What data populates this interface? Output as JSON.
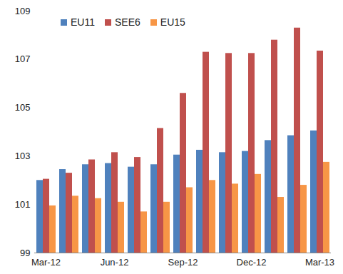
{
  "chart_data": {
    "type": "bar",
    "categories": [
      "Mar-12",
      null,
      null,
      "Jun-12",
      null,
      null,
      "Sep-12",
      null,
      null,
      "Dec-12",
      null,
      null,
      "Mar-13"
    ],
    "series": [
      {
        "name": "EU11",
        "color": "#4f81bd",
        "values": [
          102.0,
          102.45,
          102.65,
          102.7,
          102.55,
          102.65,
          103.05,
          103.25,
          103.15,
          103.2,
          103.65,
          103.85,
          104.05
        ]
      },
      {
        "name": "SEE6",
        "color": "#c0504d",
        "values": [
          102.05,
          102.3,
          102.85,
          103.15,
          102.95,
          104.15,
          105.6,
          107.3,
          107.25,
          107.25,
          107.8,
          108.3,
          107.35
        ]
      },
      {
        "name": "EU15",
        "color": "#f79646",
        "values": [
          100.95,
          101.35,
          101.25,
          101.1,
          100.7,
          101.1,
          101.7,
          102.0,
          101.85,
          102.25,
          101.3,
          101.8,
          102.75
        ]
      }
    ],
    "ylim": [
      99,
      109
    ],
    "yticks": [
      99,
      101,
      103,
      105,
      107,
      109
    ],
    "grid": false,
    "legend": "top-left"
  }
}
